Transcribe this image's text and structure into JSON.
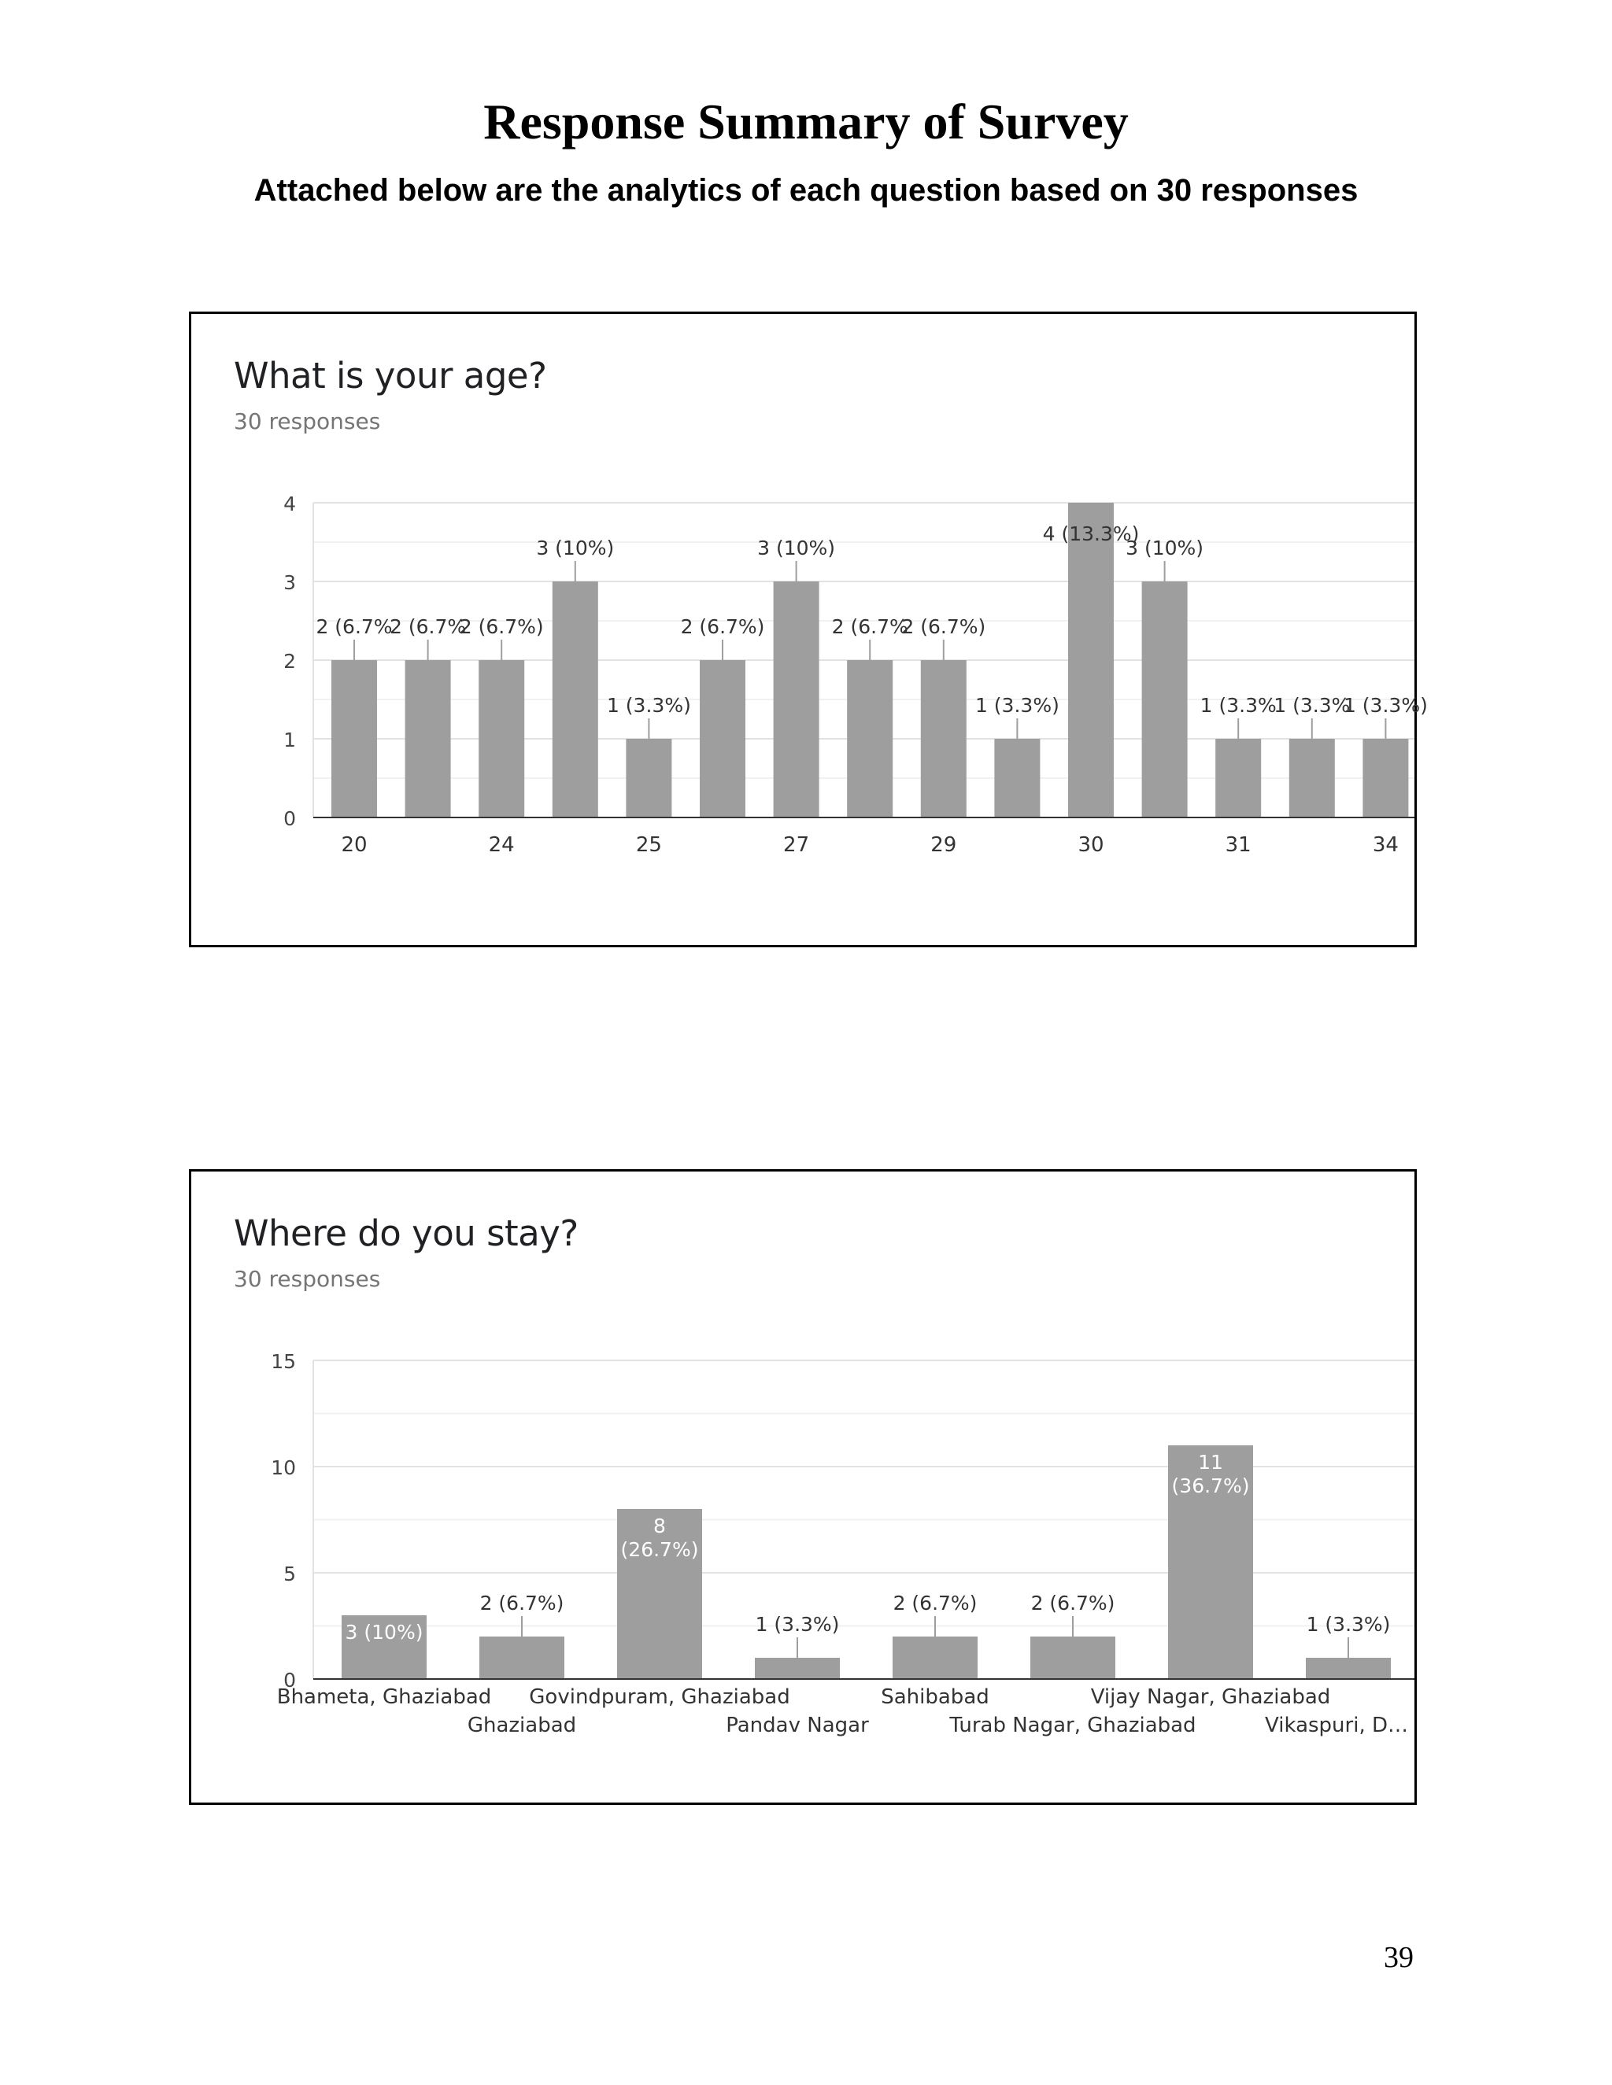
{
  "page": {
    "title": "Response Summary of Survey",
    "subtitle": "Attached below are the analytics of each question based on 30 responses",
    "page_number": "39"
  },
  "charts": {
    "age": {
      "title": "What is your age?",
      "responses": "30 responses"
    },
    "stay": {
      "title": "Where do you stay?",
      "responses": "30 responses"
    }
  },
  "chart_data": [
    {
      "type": "bar",
      "title": "What is your age?",
      "subtitle": "30 responses",
      "ylim": [
        0,
        4
      ],
      "yticks": [
        0,
        1,
        2,
        3,
        4
      ],
      "grid": true,
      "bar_color": "#9e9e9e",
      "categories": [
        "20",
        "",
        "24",
        "",
        "25",
        "",
        "27",
        "",
        "29",
        "",
        "30",
        "",
        "31",
        "",
        "34"
      ],
      "values": [
        2,
        2,
        2,
        3,
        1,
        2,
        3,
        2,
        2,
        1,
        4,
        3,
        1,
        1,
        1
      ],
      "data_labels": [
        "2 (6.7%",
        "2 (6.7%",
        "2 (6.7%)",
        "3 (10%)",
        "1 (3.3%)",
        "2 (6.7%)",
        "3 (10%)",
        "2 (6.7%",
        "2 (6.7%)",
        "1 (3.3%)",
        "4 (13.3%)",
        "3 (10%)",
        "1 (3.3%",
        "1 (3.3%",
        "1 (3.3%)"
      ]
    },
    {
      "type": "bar",
      "title": "Where do you stay?",
      "subtitle": "30 responses",
      "ylim": [
        0,
        15
      ],
      "yticks": [
        0,
        5,
        10,
        15
      ],
      "grid": true,
      "bar_color": "#9e9e9e",
      "categories": [
        "Bhameta, Ghaziabad",
        "Ghaziabad",
        "Govindpuram, Ghaziabad",
        "Pandav Nagar",
        "Sahibabad",
        "Turab Nagar, Ghaziabad",
        "Vijay Nagar, Ghaziabad",
        "Vikaspuri, D…"
      ],
      "values": [
        3,
        2,
        8,
        1,
        2,
        2,
        11,
        1
      ],
      "data_labels": [
        "3 (10%)",
        "2 (6.7%)",
        "8 (26.7%)",
        "1 (3.3%)",
        "2 (6.7%)",
        "2 (6.7%)",
        "11 (36.7%)",
        "1 (3.3%)"
      ]
    }
  ]
}
